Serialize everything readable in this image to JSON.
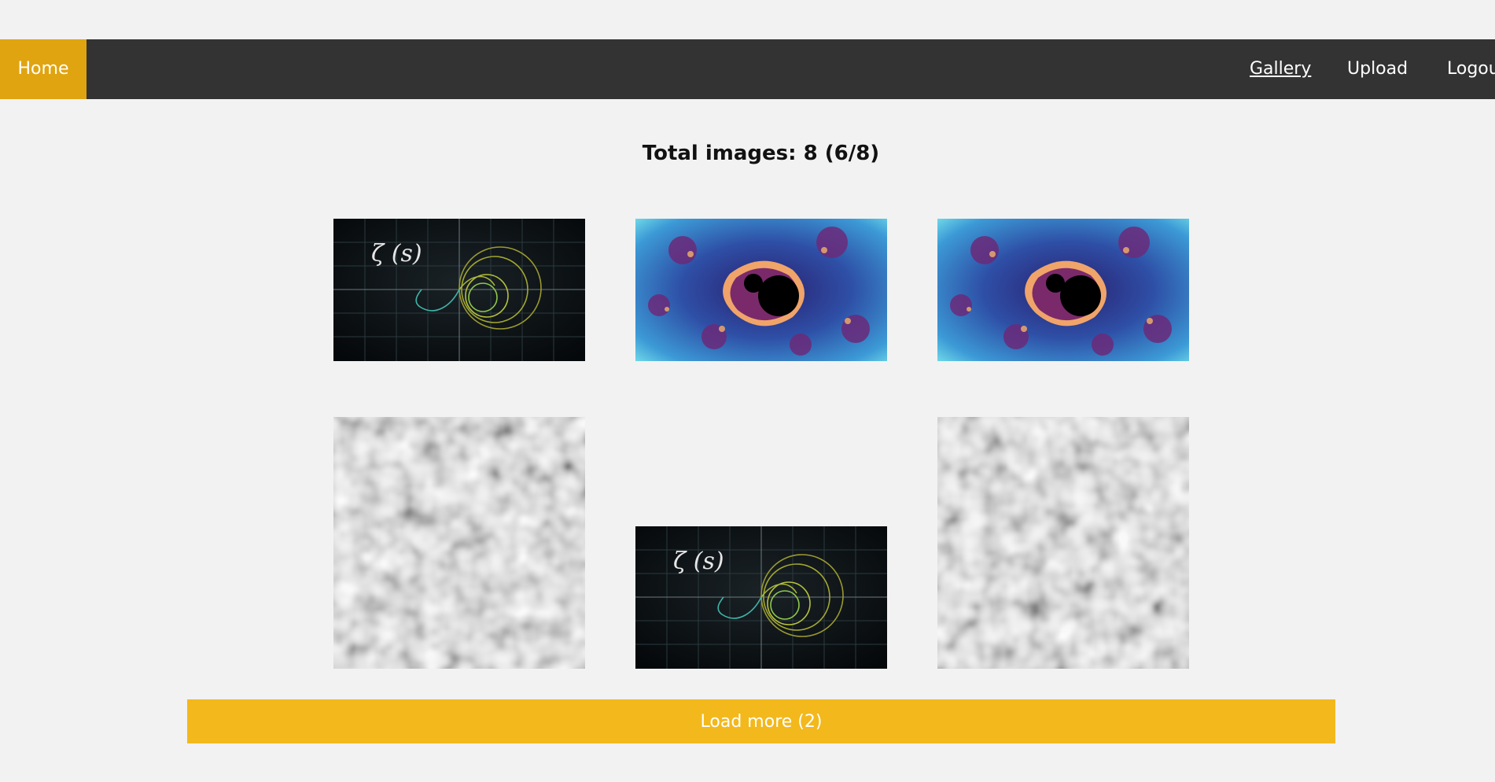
{
  "nav": {
    "home_label": "Home",
    "gallery_label": "Gallery",
    "upload_label": "Upload",
    "logout_label": "Logout"
  },
  "gallery": {
    "total_text": "Total images: 8 (6/8)",
    "load_more_label": "Load more (2)",
    "images": [
      {
        "kind": "zeta-plot",
        "caption": "ζ (s)"
      },
      {
        "kind": "mandelbrot-fractal"
      },
      {
        "kind": "mandelbrot-fractal"
      },
      {
        "kind": "gray-noise"
      },
      {
        "kind": "zeta-plot",
        "caption": "ζ (s)"
      },
      {
        "kind": "gray-noise"
      }
    ]
  },
  "colors": {
    "background": "#f2f2f2",
    "navbar": "#333333",
    "home_active": "#e0a410",
    "load_more": "#f3b81c"
  }
}
